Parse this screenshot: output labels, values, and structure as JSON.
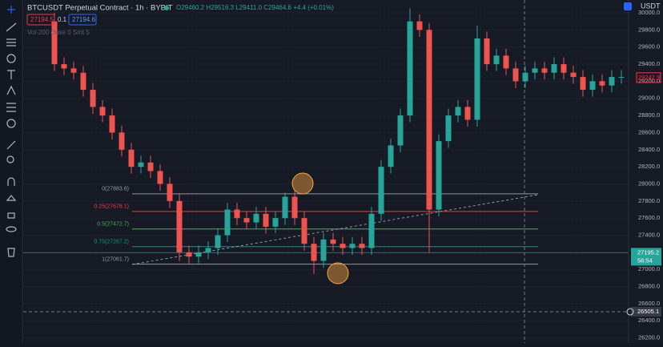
{
  "header": {
    "symbol": "BTCUSDT Perpetual Contract · 1h · BYBIT",
    "ohlc": "O29460.2 H29516.3 L29411.0 C29464.6 +4.4 (+0.01%)",
    "sell": "27194.5",
    "spread": "0.1",
    "buy": "27194.6",
    "indicator": "Vol·200 close 0 Smt 5"
  },
  "chart_data": {
    "type": "candlestick",
    "currency": "USDT",
    "up_color": "#26a69a",
    "down_color": "#ef5350",
    "open": [
      29900,
      29400,
      29350,
      29300,
      29100,
      28900,
      28800,
      28600,
      28400,
      28200,
      28250,
      28150,
      28000,
      27800,
      27200,
      27150,
      27200,
      27250,
      27400,
      27700,
      27600,
      27550,
      27650,
      27500,
      27600,
      27850,
      27600,
      27300,
      27100,
      27350,
      27300,
      27250,
      27300,
      27250,
      27650,
      28200,
      28450,
      28800,
      29900,
      29800,
      27700,
      28500,
      28800,
      28900,
      28750,
      29700,
      29400,
      29500,
      29350,
      29200,
      29300,
      29350,
      29300,
      29400,
      29300,
      29250,
      29100,
      29200,
      29150,
      29250
    ],
    "high": [
      30000,
      29480,
      29430,
      29380,
      29180,
      28980,
      28880,
      28680,
      28480,
      28330,
      28330,
      28230,
      28080,
      27880,
      27280,
      27280,
      27330,
      27480,
      27780,
      27780,
      27680,
      27730,
      27730,
      27680,
      27900,
      27930,
      27680,
      27380,
      27430,
      27430,
      27380,
      27380,
      27380,
      27730,
      28280,
      28530,
      28880,
      30050,
      29980,
      29880,
      28580,
      28880,
      28980,
      28980,
      29850,
      29780,
      29580,
      29580,
      29430,
      29380,
      29430,
      29430,
      29480,
      29480,
      29380,
      29330,
      29280,
      29280,
      29330,
      29330
    ],
    "low": [
      29320,
      29270,
      29220,
      29020,
      28820,
      28720,
      28520,
      28320,
      28120,
      28120,
      28070,
      27920,
      27720,
      27100,
      27070,
      27070,
      27120,
      27170,
      27320,
      27520,
      27470,
      27470,
      27420,
      27420,
      27520,
      27520,
      27220,
      26950,
      27020,
      27220,
      27170,
      27170,
      27170,
      27170,
      27570,
      28120,
      28370,
      28720,
      29720,
      27200,
      27620,
      28420,
      28720,
      28670,
      28670,
      29320,
      29320,
      29270,
      29120,
      29120,
      29220,
      29220,
      29220,
      29220,
      29170,
      29020,
      29020,
      29070,
      29070,
      29170
    ],
    "close": [
      29400,
      29350,
      29300,
      29100,
      28900,
      28800,
      28600,
      28400,
      28200,
      28250,
      28150,
      28000,
      27800,
      27200,
      27150,
      27200,
      27250,
      27400,
      27700,
      27600,
      27550,
      27650,
      27500,
      27600,
      27850,
      27600,
      27300,
      27100,
      27350,
      27300,
      27250,
      27300,
      27250,
      27650,
      28200,
      28450,
      28800,
      29900,
      29800,
      27700,
      28500,
      28800,
      28900,
      28750,
      29700,
      29400,
      29500,
      29350,
      29200,
      29300,
      29350,
      29300,
      29400,
      29300,
      29250,
      29100,
      29200,
      29150,
      29250,
      29250
    ],
    "ylim": [
      26140,
      30150
    ],
    "yticks": [
      {
        "value": 26200,
        "label": "26200.0"
      },
      {
        "value": 26400,
        "label": "26400.0"
      },
      {
        "value": 26600,
        "label": "26600.0"
      },
      {
        "value": 26800,
        "label": "26800.0"
      },
      {
        "value": 27000,
        "label": "27000.0"
      },
      {
        "value": 27200,
        "label": "27200.0"
      },
      {
        "value": 27400,
        "label": "27400.0"
      },
      {
        "value": 27600,
        "label": "27600.0"
      },
      {
        "value": 27800,
        "label": "27800.0"
      },
      {
        "value": 28000,
        "label": "28000.0"
      },
      {
        "value": 28200,
        "label": "28200.0"
      },
      {
        "value": 28400,
        "label": "28400.0"
      },
      {
        "value": 28600,
        "label": "28600.0"
      },
      {
        "value": 28800,
        "label": "28800.0"
      },
      {
        "value": 29000,
        "label": "29000.0"
      },
      {
        "value": 29200,
        "label": "29200.0"
      },
      {
        "value": 29400,
        "label": "29400.0"
      },
      {
        "value": 29600,
        "label": "29600.0"
      },
      {
        "value": 29800,
        "label": "29800.0"
      },
      {
        "value": 30000,
        "label": "30000.0"
      }
    ],
    "fib_levels": [
      {
        "value": 27883.6,
        "label": "0(27883.6)",
        "color": "#9598a1"
      },
      {
        "value": 27678.1,
        "label": "0.25(27678.1)",
        "color": "#f23645"
      },
      {
        "value": 27472.7,
        "label": "0.5(27472.7)",
        "color": "#4caf50"
      },
      {
        "value": 27267.2,
        "label": "0.75(27267.2)",
        "color": "#089981"
      },
      {
        "value": 27061.7,
        "label": "1(27061.7)",
        "color": "#9598a1"
      }
    ],
    "last_price": {
      "value": 27195.2,
      "label": "27195.2",
      "countdown": "56:54"
    },
    "marker_price": {
      "value": 29242.9,
      "label": "29242.9"
    },
    "crosshair_price": {
      "value": 26505.1,
      "label": "26505.1"
    }
  }
}
